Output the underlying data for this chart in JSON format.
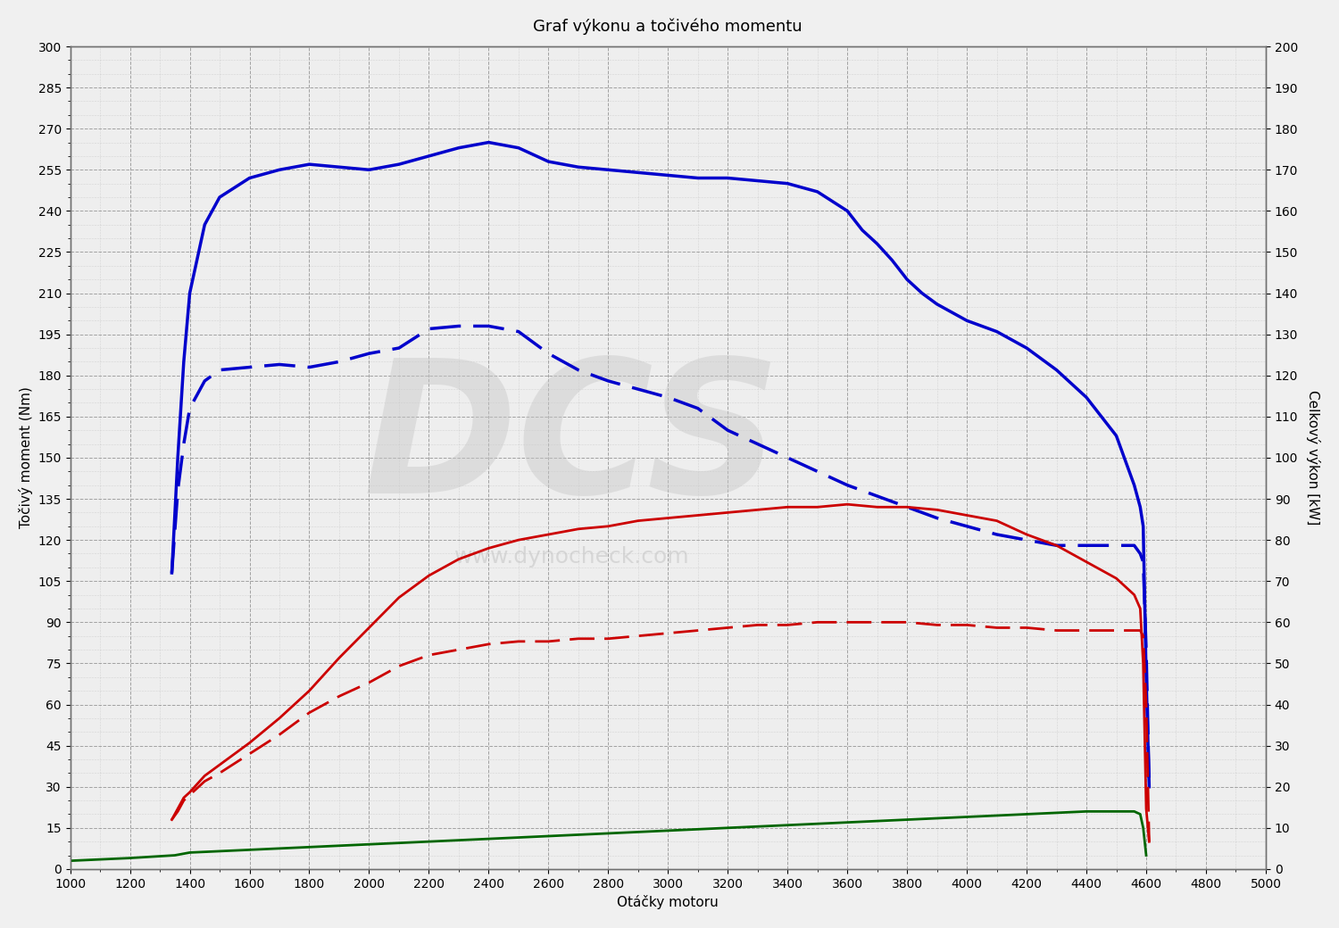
{
  "title": "Graf výkonu a točivého momentu",
  "xlabel": "Otáčky motoru",
  "ylabel_left": "Točivý moment (Nm)",
  "ylabel_right": "Celkový výkon [kW]",
  "ylim_left": [
    0,
    300
  ],
  "ylim_right": [
    0,
    200
  ],
  "xlim": [
    1000,
    5000
  ],
  "bg_color": "#f2f2f2",
  "grid_color": "#999999",
  "blue_solid_rpm": [
    1340,
    1360,
    1380,
    1400,
    1450,
    1500,
    1600,
    1700,
    1800,
    1900,
    2000,
    2100,
    2200,
    2300,
    2400,
    2500,
    2600,
    2700,
    2800,
    2900,
    3000,
    3100,
    3200,
    3300,
    3400,
    3500,
    3600,
    3650,
    3700,
    3750,
    3800,
    3850,
    3900,
    3950,
    4000,
    4050,
    4100,
    4150,
    4200,
    4300,
    4400,
    4500,
    4560,
    4580,
    4590,
    4600,
    4610
  ],
  "blue_solid_val": [
    108,
    150,
    185,
    210,
    235,
    245,
    252,
    255,
    257,
    256,
    255,
    257,
    260,
    263,
    265,
    263,
    258,
    256,
    255,
    254,
    253,
    252,
    252,
    251,
    250,
    247,
    240,
    233,
    228,
    222,
    215,
    210,
    206,
    203,
    200,
    198,
    196,
    193,
    190,
    182,
    172,
    158,
    140,
    132,
    125,
    70,
    30
  ],
  "blue_dashed_rpm": [
    1340,
    1360,
    1380,
    1400,
    1450,
    1500,
    1600,
    1700,
    1800,
    1900,
    2000,
    2100,
    2200,
    2300,
    2400,
    2500,
    2600,
    2700,
    2800,
    2900,
    3000,
    3100,
    3200,
    3300,
    3400,
    3500,
    3600,
    3700,
    3800,
    3900,
    4000,
    4100,
    4200,
    4300,
    4400,
    4500,
    4560,
    4580,
    4590,
    4600,
    4610
  ],
  "blue_dashed_val": [
    108,
    138,
    155,
    168,
    178,
    182,
    183,
    184,
    183,
    185,
    188,
    190,
    197,
    198,
    198,
    196,
    188,
    182,
    178,
    175,
    172,
    168,
    160,
    155,
    150,
    145,
    140,
    136,
    132,
    128,
    125,
    122,
    120,
    118,
    118,
    118,
    118,
    115,
    112,
    80,
    30
  ],
  "red_solid_rpm": [
    1340,
    1360,
    1380,
    1400,
    1450,
    1500,
    1600,
    1700,
    1800,
    1900,
    2000,
    2100,
    2200,
    2300,
    2400,
    2500,
    2600,
    2700,
    2800,
    2900,
    3000,
    3100,
    3200,
    3300,
    3400,
    3500,
    3600,
    3700,
    3800,
    3900,
    4000,
    4100,
    4200,
    4300,
    4400,
    4500,
    4560,
    4580,
    4590,
    4600,
    4610
  ],
  "red_solid_val": [
    18,
    22,
    26,
    28,
    34,
    38,
    46,
    55,
    65,
    77,
    88,
    99,
    107,
    113,
    117,
    120,
    122,
    124,
    125,
    127,
    128,
    129,
    130,
    131,
    132,
    132,
    133,
    132,
    132,
    131,
    129,
    127,
    122,
    118,
    112,
    106,
    100,
    95,
    75,
    22,
    10
  ],
  "red_dashed_rpm": [
    1340,
    1360,
    1380,
    1400,
    1450,
    1500,
    1600,
    1700,
    1800,
    1900,
    2000,
    2100,
    2200,
    2300,
    2400,
    2500,
    2600,
    2700,
    2800,
    2900,
    3000,
    3100,
    3200,
    3300,
    3400,
    3500,
    3600,
    3700,
    3800,
    3900,
    4000,
    4100,
    4200,
    4300,
    4400,
    4500,
    4560,
    4580,
    4590,
    4600,
    4610
  ],
  "red_dashed_val": [
    18,
    21,
    25,
    27,
    32,
    35,
    42,
    49,
    57,
    63,
    68,
    74,
    78,
    80,
    82,
    83,
    83,
    84,
    84,
    85,
    86,
    87,
    88,
    89,
    89,
    90,
    90,
    90,
    90,
    89,
    89,
    88,
    88,
    87,
    87,
    87,
    87,
    87,
    85,
    60,
    10
  ],
  "green_solid_rpm": [
    1000,
    1200,
    1350,
    1400,
    1600,
    1800,
    2000,
    2200,
    2400,
    2600,
    2800,
    3000,
    3200,
    3400,
    3600,
    3800,
    4000,
    4200,
    4400,
    4560,
    4580,
    4590,
    4600
  ],
  "green_solid_val": [
    3,
    4,
    5,
    6,
    7,
    8,
    9,
    10,
    11,
    12,
    13,
    14,
    15,
    16,
    17,
    18,
    19,
    20,
    21,
    21,
    20,
    15,
    5
  ],
  "line_width": 2.0,
  "blue_color": "#0000cc",
  "red_color": "#cc0000",
  "green_color": "#006600",
  "watermark_text": "DCS",
  "watermark_url": "www.dynocheck.com",
  "title_fontsize": 13,
  "axis_label_fontsize": 11,
  "tick_fontsize": 10
}
